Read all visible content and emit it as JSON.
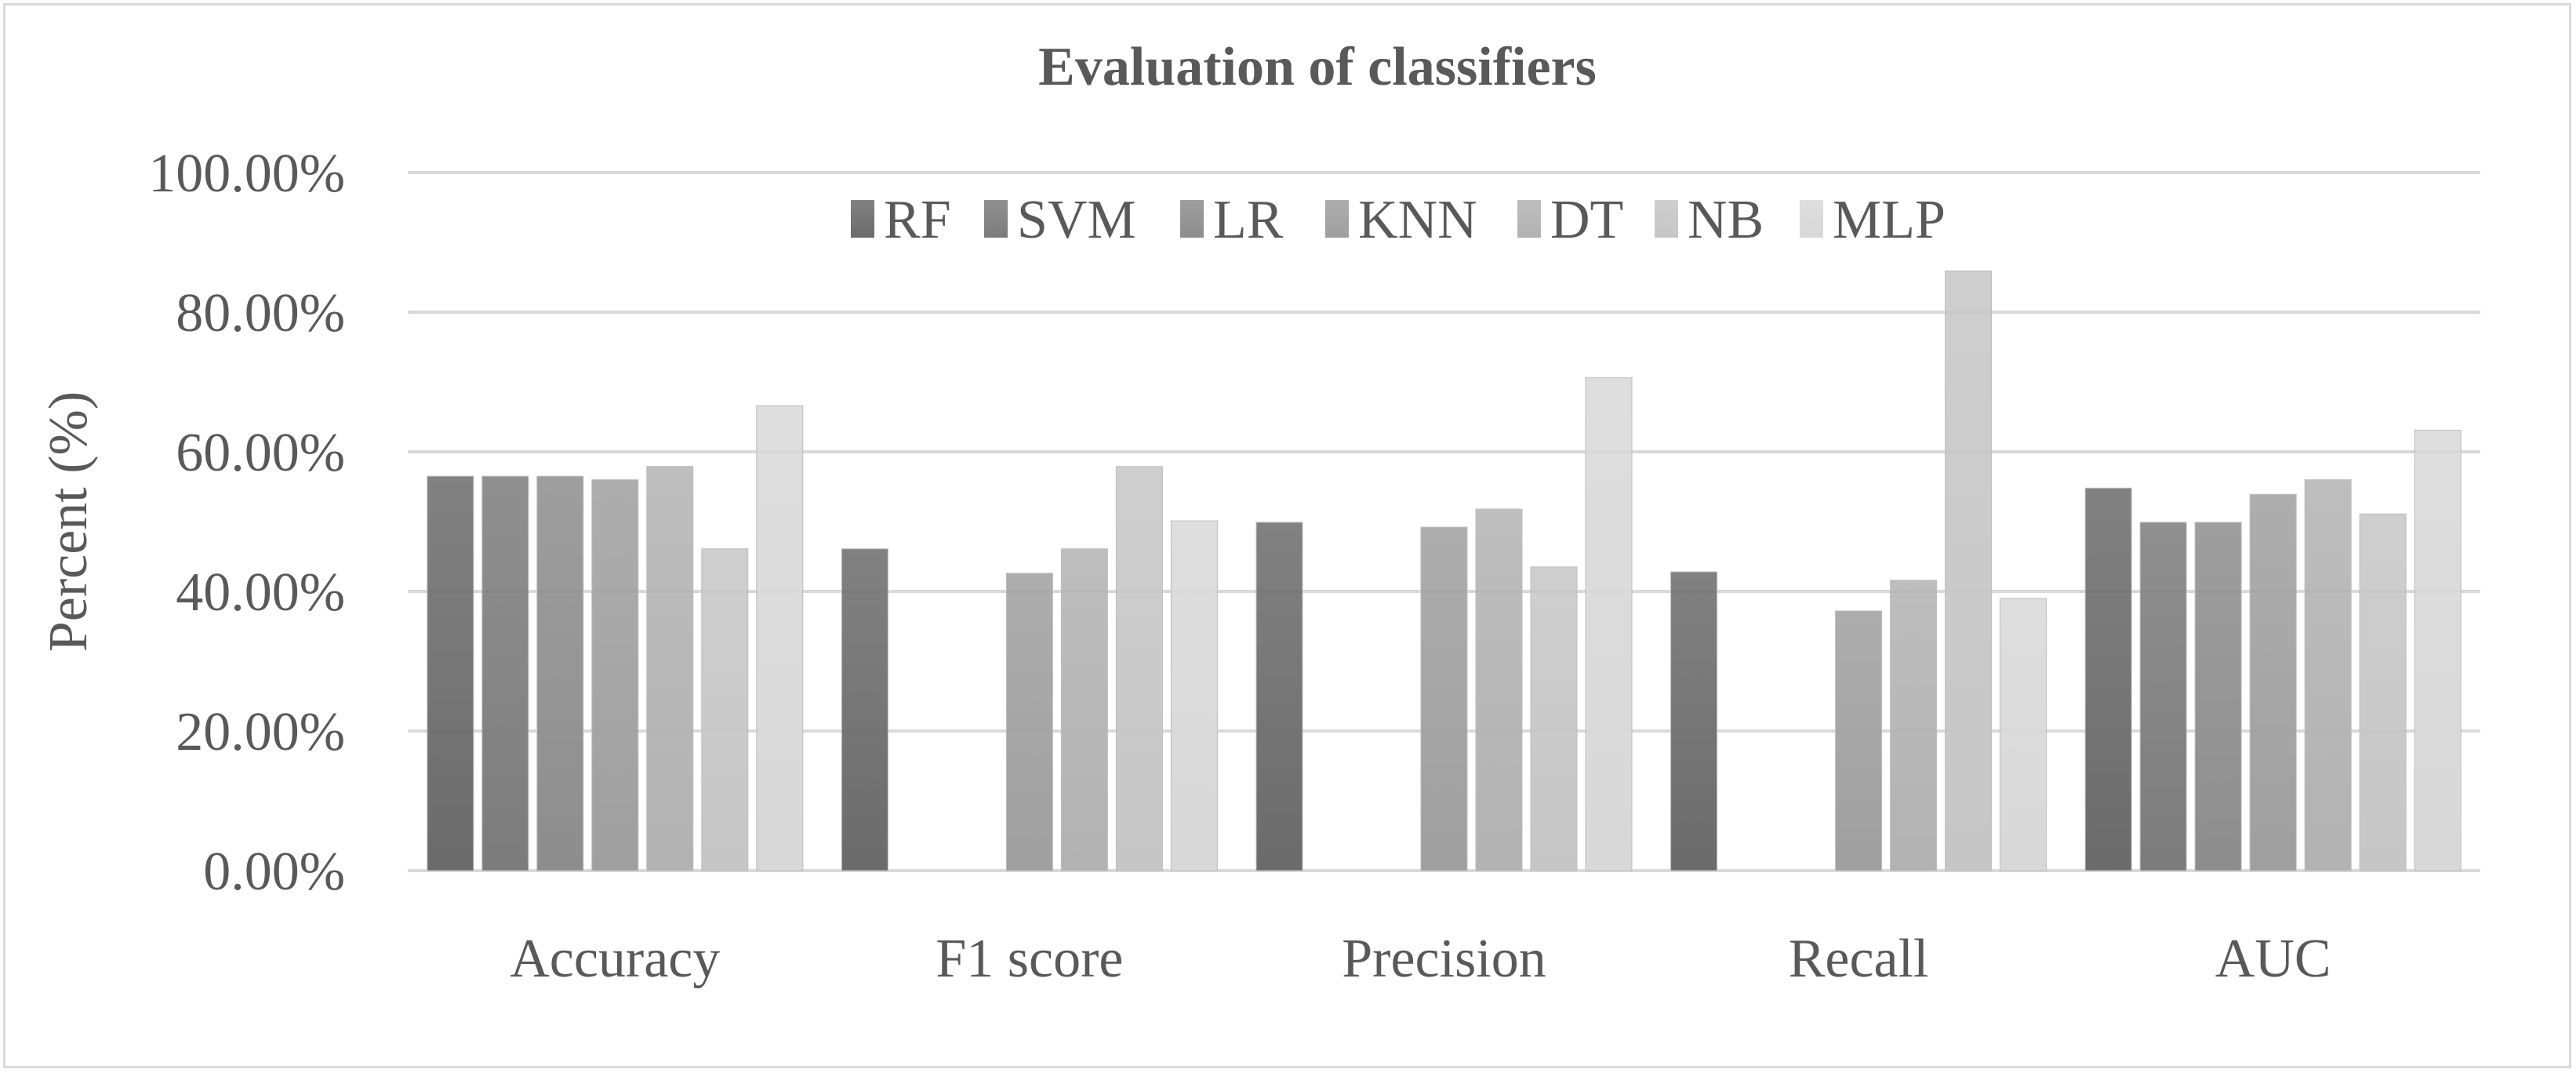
{
  "chart_data": {
    "type": "bar",
    "title": "Evaluation of classifiers",
    "xlabel": "",
    "ylabel": "Percent (%)",
    "ylim": [
      0,
      100
    ],
    "yticks": [
      "0.00%",
      "20.00%",
      "40.00%",
      "60.00%",
      "80.00%",
      "100.00%"
    ],
    "grid": true,
    "legend_placement": "top",
    "categories": [
      "Accuracy",
      "F1 score",
      "Precision",
      "Recall",
      "AUC"
    ],
    "series": [
      {
        "name": "RF",
        "color": "#6b6b6b",
        "values": [
          56.5,
          46.1,
          49.9,
          42.8,
          54.8
        ]
      },
      {
        "name": "SVM",
        "color": "#7c7c7c",
        "values": [
          56.5,
          0,
          0,
          0,
          49.9
        ]
      },
      {
        "name": "LR",
        "color": "#8d8d8d",
        "values": [
          56.5,
          0,
          0,
          0,
          49.9
        ]
      },
      {
        "name": "KNN",
        "color": "#9f9f9f",
        "values": [
          56.0,
          42.6,
          49.2,
          37.2,
          53.9
        ]
      },
      {
        "name": "DT",
        "color": "#b2b2b2",
        "values": [
          57.9,
          46.1,
          51.8,
          41.6,
          56.0
        ]
      },
      {
        "name": "NB",
        "color": "#c6c6c6",
        "values": [
          46.1,
          57.9,
          43.5,
          85.9,
          51.1
        ]
      },
      {
        "name": "MLP",
        "color": "#d8d8d8",
        "values": [
          66.6,
          50.1,
          70.6,
          39.0,
          63.1
        ]
      }
    ]
  }
}
